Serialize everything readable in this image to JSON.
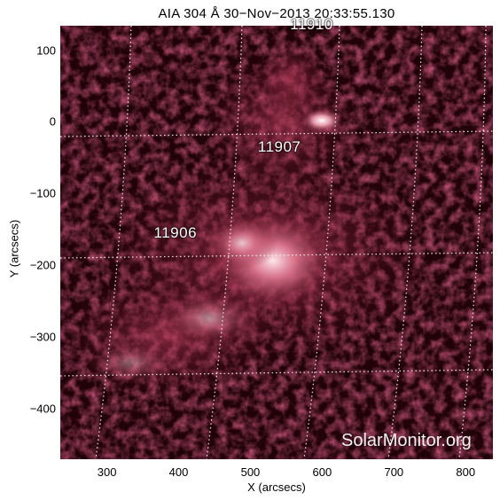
{
  "title": "AIA 304 Å 30−Nov−2013 20:33:55.130",
  "x_axis": {
    "label": "X (arcsecs)",
    "ticks": [
      "300",
      "400",
      "500",
      "600",
      "700",
      "800"
    ],
    "range": [
      235,
      838
    ]
  },
  "y_axis": {
    "label": "Y (arcsecs)",
    "ticks": [
      "100",
      "0",
      "−100",
      "−200",
      "−300",
      "−400"
    ],
    "range": [
      -470,
      134
    ]
  },
  "regions": [
    {
      "label": "11910",
      "x": 590,
      "y": 135
    },
    {
      "label": "11907",
      "x": 545,
      "y": -35
    },
    {
      "label": "11906",
      "x": 400,
      "y": -155
    }
  ],
  "watermark": "SolarMonitor.org",
  "colors": {
    "background": "#000000",
    "plasma_dark": "#5a0f1e",
    "plasma": "#b3304f",
    "plasma_bright": "#ffd9e0",
    "grid": "#ffffff"
  }
}
